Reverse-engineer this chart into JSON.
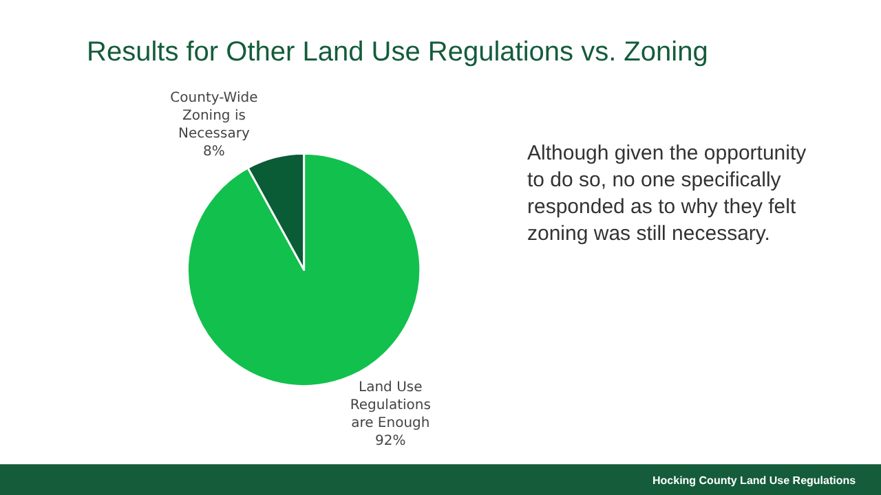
{
  "chart_data": {
    "type": "pie",
    "title": "Results for Other Land Use Regulations vs. Zoning",
    "categories": [
      "Land Use Regulations are Enough",
      "County-Wide Zoning is Necessary"
    ],
    "values": [
      92,
      8
    ],
    "value_labels": [
      "92%",
      "8%"
    ],
    "colors": [
      "#12c04d",
      "#0a5c36"
    ],
    "annotations": [
      "Although given the opportunity to do so, no one specifically responded as to why they felt zoning was still necessary.",
      "Hocking County Land Use Regulations"
    ],
    "legend": false
  }
}
